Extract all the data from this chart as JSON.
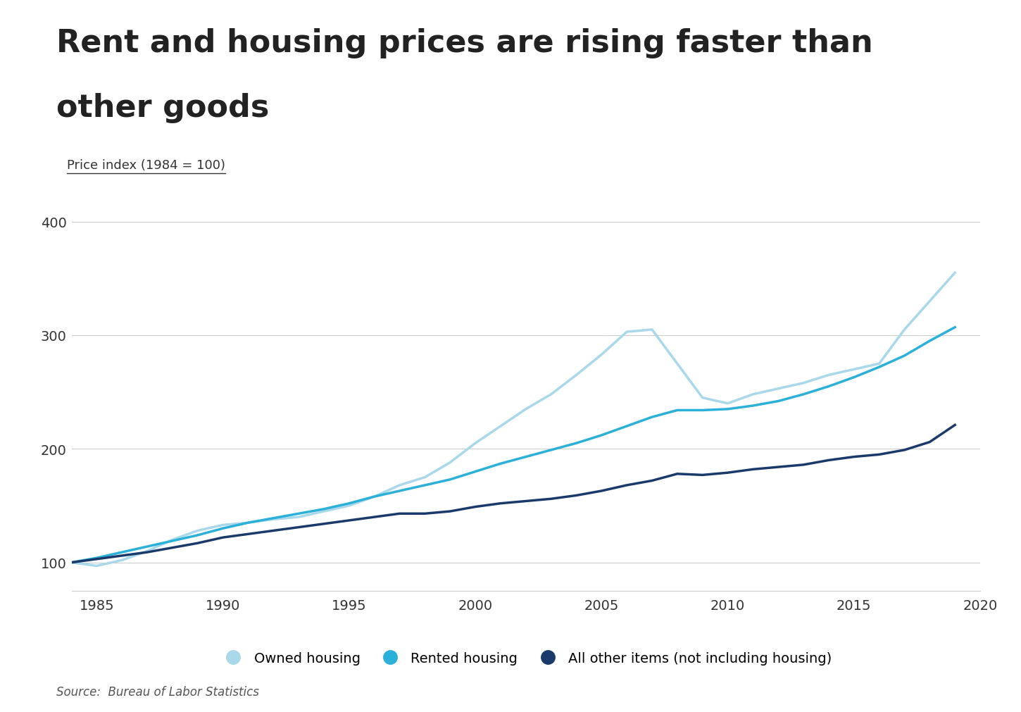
{
  "title_line1": "Rent and housing prices are rising faster than",
  "title_line2": "other goods",
  "ylabel": "Price index (1984 = 100)",
  "source": "Source:  Bureau of Labor Statistics",
  "background_color": "#ffffff",
  "title_fontsize": 32,
  "title_fontweight": "bold",
  "title_color": "#222222",
  "years": [
    1984,
    1985,
    1986,
    1987,
    1988,
    1989,
    1990,
    1991,
    1992,
    1993,
    1994,
    1995,
    1996,
    1997,
    1998,
    1999,
    2000,
    2001,
    2002,
    2003,
    2004,
    2005,
    2006,
    2007,
    2008,
    2009,
    2010,
    2011,
    2012,
    2013,
    2014,
    2015,
    2016,
    2017,
    2018,
    2019
  ],
  "owned_housing": [
    100,
    97,
    102,
    110,
    120,
    128,
    133,
    135,
    138,
    140,
    145,
    150,
    158,
    168,
    175,
    188,
    205,
    220,
    235,
    248,
    265,
    283,
    303,
    305,
    275,
    245,
    240,
    248,
    253,
    258,
    265,
    270,
    275,
    305,
    330,
    355
  ],
  "rented_housing": [
    100,
    104,
    109,
    114,
    119,
    124,
    130,
    135,
    139,
    143,
    147,
    152,
    158,
    163,
    168,
    173,
    180,
    187,
    193,
    199,
    205,
    212,
    220,
    228,
    234,
    234,
    235,
    238,
    242,
    248,
    255,
    263,
    272,
    282,
    295,
    307
  ],
  "all_other": [
    100,
    103,
    106,
    109,
    113,
    117,
    122,
    125,
    128,
    131,
    134,
    137,
    140,
    143,
    143,
    145,
    149,
    152,
    154,
    156,
    159,
    163,
    168,
    172,
    178,
    177,
    179,
    182,
    184,
    186,
    190,
    193,
    195,
    199,
    206,
    221
  ],
  "owned_color": "#a8d8ea",
  "rented_color": "#2ab0d9",
  "other_color": "#1a3a6b",
  "owned_lw": 2.5,
  "rented_lw": 2.5,
  "other_lw": 2.5,
  "xlim": [
    1984,
    2020
  ],
  "ylim": [
    75,
    420
  ],
  "yticks": [
    100,
    200,
    300,
    400
  ],
  "xticks": [
    1985,
    1990,
    1995,
    2000,
    2005,
    2010,
    2015,
    2020
  ],
  "legend_labels": [
    "Owned housing",
    "Rented housing",
    "All other items (not including housing)"
  ],
  "legend_colors": [
    "#a8d8ea",
    "#2ab0d9",
    "#1a3a6b"
  ]
}
